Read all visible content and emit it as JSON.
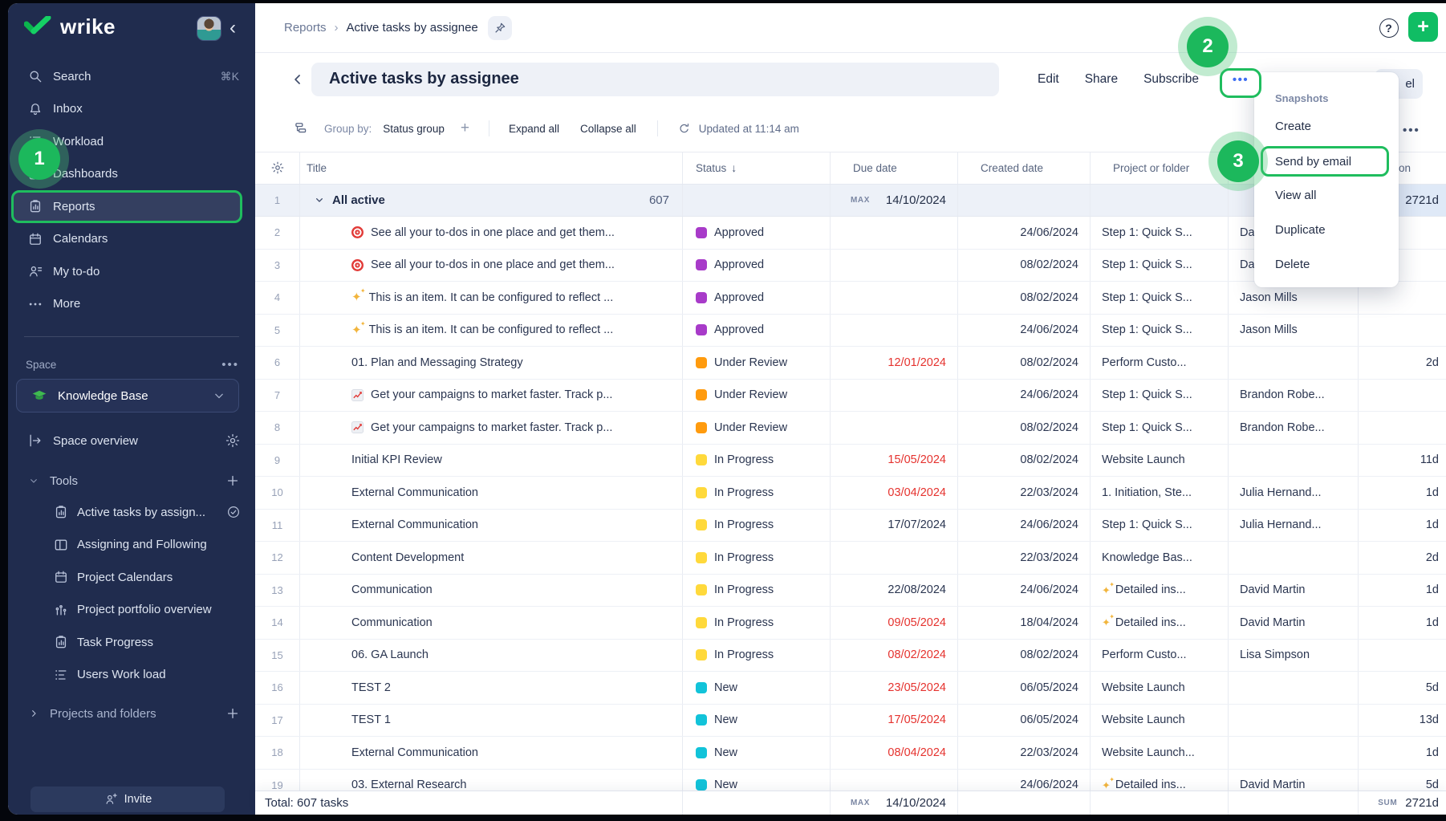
{
  "colors": {
    "green": "#1fbd5e",
    "sidebar_bg": "#202c4e",
    "overdue_red": "#e5322e",
    "dots_blue": "#3d6ef2",
    "status": {
      "Approved": "#a83bc9",
      "Under Review": "#ff9b0e",
      "In Progress": "#ffd93b",
      "New": "#12c3d9"
    }
  },
  "steps": [
    "1",
    "2",
    "3"
  ],
  "sidebar": {
    "logo": "wrike",
    "collapse_icon": "‹",
    "nav": [
      {
        "icon": "search",
        "label": "Search",
        "shortcut": "⌘K"
      },
      {
        "icon": "bell",
        "label": "Inbox"
      },
      {
        "icon": "workload",
        "label": "Workload"
      },
      {
        "icon": "dashboard",
        "label": "Dashboards"
      },
      {
        "icon": "report",
        "label": "Reports",
        "highlight": true
      },
      {
        "icon": "calendar",
        "label": "Calendars"
      },
      {
        "icon": "todo",
        "label": "My to-do"
      },
      {
        "icon": "more",
        "label": "More"
      }
    ],
    "space": {
      "label": "Space",
      "dots": "•••",
      "name": "Knowledge Base",
      "overview": "Space overview",
      "tools_label": "Tools"
    },
    "tools": [
      {
        "icon": "report",
        "label": "Active tasks by assign...",
        "check": true
      },
      {
        "icon": "board",
        "label": "Assigning and Following"
      },
      {
        "icon": "calendar",
        "label": "Project Calendars"
      },
      {
        "icon": "portfolio",
        "label": "Project portfolio overview"
      },
      {
        "icon": "report",
        "label": "Task Progress"
      },
      {
        "icon": "workload",
        "label": "Users Work load"
      }
    ],
    "projects_folders": "Projects and folders",
    "invite": "Invite"
  },
  "header": {
    "breadcrumb_parent": "Reports",
    "breadcrumb_sep": "›",
    "breadcrumb_current": "Active tasks by assignee",
    "title": "Active tasks by assignee",
    "back_icon": "‹",
    "actions": {
      "edit": "Edit",
      "share": "Share",
      "subscribe": "Subscribe"
    },
    "more_dots": "•••",
    "partial_chip": "el",
    "help": "?",
    "add": "+"
  },
  "toolbar": {
    "group_by_label": "Group by:",
    "group_by_value": "Status group",
    "add": "+",
    "expand_all": "Expand all",
    "collapse_all": "Collapse all",
    "updated": "Updated at 11:14 am",
    "more_dots": "•••"
  },
  "menu": {
    "section": "Snapshots",
    "items": [
      "Create",
      "Send by email",
      "View all",
      "Duplicate",
      "Delete"
    ],
    "highlighted": "Send by email"
  },
  "table": {
    "columns": {
      "title": "Title",
      "status": "Status",
      "sort_arrow": "↓",
      "due": "Due date",
      "created": "Created date",
      "project": "Project or folder",
      "assignee_hidden": "",
      "duration": "Duration"
    },
    "group": {
      "num": "1",
      "label": "All active",
      "count": "607",
      "max_label": "MAX",
      "max_value": "14/10/2024",
      "sum_value": "2721d"
    },
    "rows": [
      {
        "num": "2",
        "icon": "target",
        "title": "See all your to-dos in one place and get them...",
        "status": "Approved",
        "due": "",
        "overdue": false,
        "created": "24/06/2024",
        "project": "Step 1: Quick S...",
        "project_sparkle": false,
        "assignee": "Da",
        "duration": ""
      },
      {
        "num": "3",
        "icon": "target",
        "title": "See all your to-dos in one place and get them...",
        "status": "Approved",
        "due": "",
        "overdue": false,
        "created": "08/02/2024",
        "project": "Step 1: Quick S...",
        "project_sparkle": false,
        "assignee": "Da",
        "duration": ""
      },
      {
        "num": "4",
        "icon": "sparkles",
        "title": "This is an item. It can be configured to reflect ...",
        "status": "Approved",
        "due": "",
        "overdue": false,
        "created": "08/02/2024",
        "project": "Step 1: Quick S...",
        "project_sparkle": false,
        "assignee": "Jason Mills",
        "duration": ""
      },
      {
        "num": "5",
        "icon": "sparkles",
        "title": "This is an item. It can be configured to reflect ...",
        "status": "Approved",
        "due": "",
        "overdue": false,
        "created": "24/06/2024",
        "project": "Step 1: Quick S...",
        "project_sparkle": false,
        "assignee": "Jason Mills",
        "duration": ""
      },
      {
        "num": "6",
        "icon": "",
        "title": "01. Plan and Messaging Strategy",
        "status": "Under Review",
        "due": "12/01/2024",
        "overdue": true,
        "created": "08/02/2024",
        "project": "Perform Custo...",
        "project_sparkle": false,
        "assignee": "",
        "duration": "2d"
      },
      {
        "num": "7",
        "icon": "chart",
        "title": "Get your campaigns to market faster. Track p...",
        "status": "Under Review",
        "due": "",
        "overdue": false,
        "created": "24/06/2024",
        "project": "Step 1: Quick S...",
        "project_sparkle": false,
        "assignee": "Brandon Robe...",
        "duration": ""
      },
      {
        "num": "8",
        "icon": "chart",
        "title": "Get your campaigns to market faster. Track p...",
        "status": "Under Review",
        "due": "",
        "overdue": false,
        "created": "08/02/2024",
        "project": "Step 1: Quick S...",
        "project_sparkle": false,
        "assignee": "Brandon Robe...",
        "duration": ""
      },
      {
        "num": "9",
        "icon": "",
        "title": "Initial KPI Review",
        "status": "In Progress",
        "due": "15/05/2024",
        "overdue": true,
        "created": "08/02/2024",
        "project": "Website Launch",
        "project_sparkle": false,
        "assignee": "",
        "duration": "11d"
      },
      {
        "num": "10",
        "icon": "",
        "title": "External Communication",
        "status": "In Progress",
        "due": "03/04/2024",
        "overdue": true,
        "created": "22/03/2024",
        "project": "1. Initiation, Ste...",
        "project_sparkle": false,
        "assignee": "Julia Hernand...",
        "duration": "1d"
      },
      {
        "num": "11",
        "icon": "",
        "title": "External Communication",
        "status": "In Progress",
        "due": "17/07/2024",
        "overdue": false,
        "created": "24/06/2024",
        "project": "Step 1: Quick S...",
        "project_sparkle": false,
        "assignee": "Julia Hernand...",
        "duration": "1d"
      },
      {
        "num": "12",
        "icon": "",
        "title": "Content Development",
        "status": "In Progress",
        "due": "",
        "overdue": false,
        "created": "22/03/2024",
        "project": "Knowledge Bas...",
        "project_sparkle": false,
        "assignee": "",
        "duration": "2d"
      },
      {
        "num": "13",
        "icon": "",
        "title": "Communication",
        "status": "In Progress",
        "due": "22/08/2024",
        "overdue": false,
        "created": "24/06/2024",
        "project": "Detailed ins...",
        "project_sparkle": true,
        "assignee": "David Martin",
        "duration": "1d"
      },
      {
        "num": "14",
        "icon": "",
        "title": "Communication",
        "status": "In Progress",
        "due": "09/05/2024",
        "overdue": true,
        "created": "18/04/2024",
        "project": "Detailed ins...",
        "project_sparkle": true,
        "assignee": "David Martin",
        "duration": "1d"
      },
      {
        "num": "15",
        "icon": "",
        "title": "06. GA Launch",
        "status": "In Progress",
        "due": "08/02/2024",
        "overdue": true,
        "created": "08/02/2024",
        "project": "Perform Custo...",
        "project_sparkle": false,
        "assignee": "Lisa Simpson",
        "duration": ""
      },
      {
        "num": "16",
        "icon": "",
        "title": "TEST 2",
        "status": "New",
        "due": "23/05/2024",
        "overdue": true,
        "created": "06/05/2024",
        "project": "Website Launch",
        "project_sparkle": false,
        "assignee": "",
        "duration": "5d"
      },
      {
        "num": "17",
        "icon": "",
        "title": "TEST 1",
        "status": "New",
        "due": "17/05/2024",
        "overdue": true,
        "created": "06/05/2024",
        "project": "Website Launch",
        "project_sparkle": false,
        "assignee": "",
        "duration": "13d"
      },
      {
        "num": "18",
        "icon": "",
        "title": "External Communication",
        "status": "New",
        "due": "08/04/2024",
        "overdue": true,
        "created": "22/03/2024",
        "project": "Website Launch...",
        "project_sparkle": false,
        "assignee": "",
        "duration": "1d"
      },
      {
        "num": "19",
        "icon": "",
        "title": "03. External Research",
        "status": "New",
        "due": "",
        "overdue": false,
        "created": "24/06/2024",
        "project": "Detailed ins...",
        "project_sparkle": true,
        "assignee": "David Martin",
        "duration": "5d"
      }
    ],
    "totals": {
      "label": "Total: 607 tasks",
      "max_label": "MAX",
      "max_value": "14/10/2024",
      "sum_label": "SUM",
      "sum_value": "2721d"
    }
  }
}
